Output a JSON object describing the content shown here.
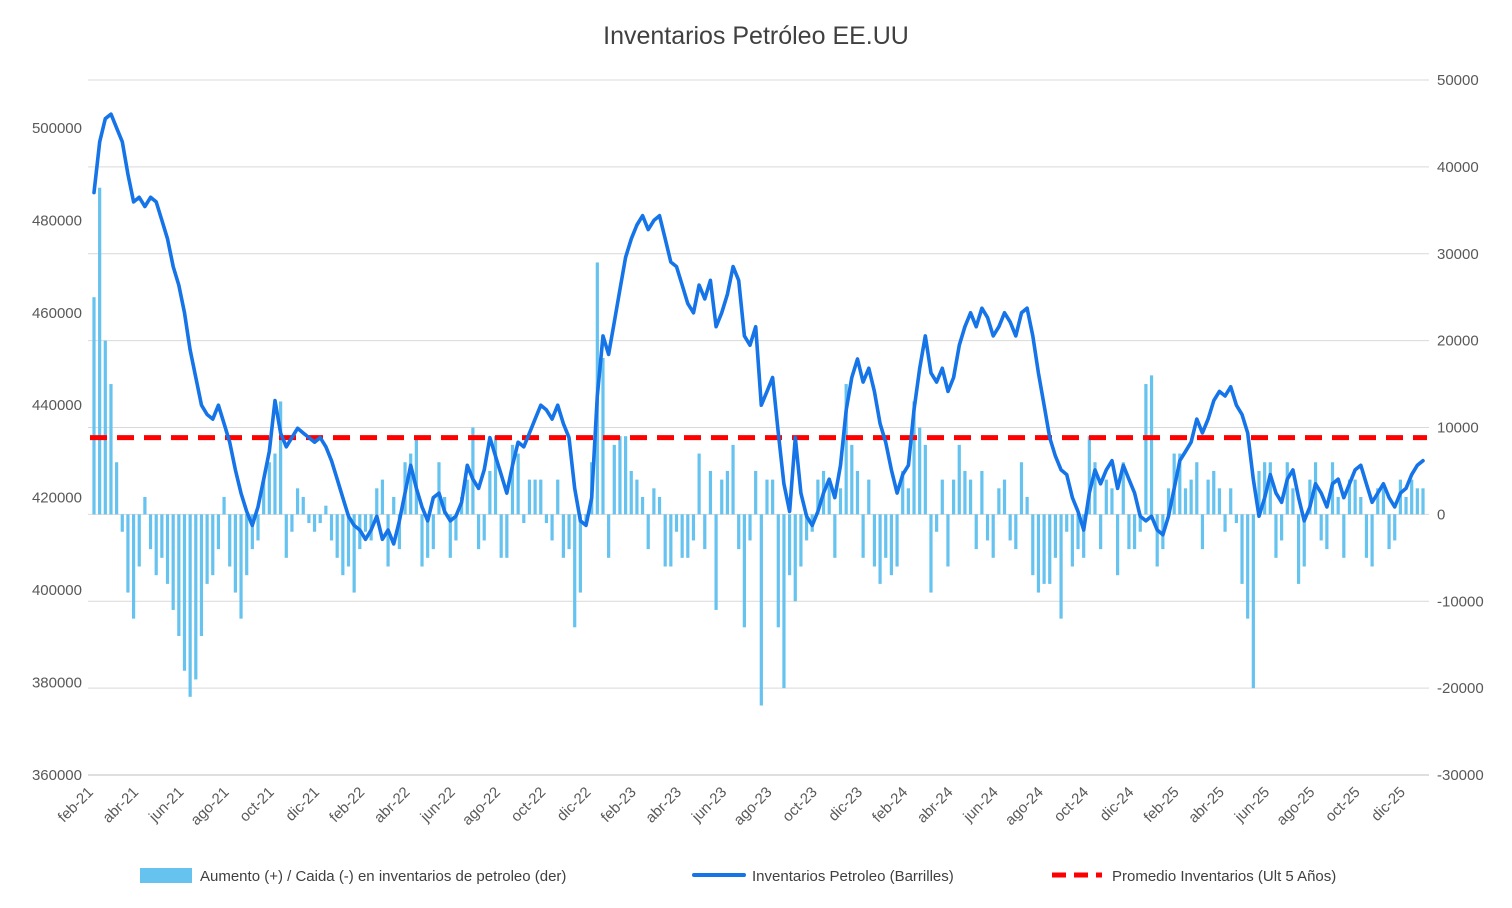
{
  "chart_data": {
    "type": "combo-bar-line",
    "title": "Inventarios Petróleo EE.UU",
    "left_axis": {
      "ticks": [
        360000,
        380000,
        400000,
        420000,
        440000,
        460000,
        480000,
        500000
      ],
      "min": 360000,
      "px_per_20000_matches_line_scale": true
    },
    "right_axis": {
      "ticks": [
        -30000,
        -20000,
        -10000,
        0,
        10000,
        20000,
        30000,
        40000,
        50000
      ],
      "min": -30000,
      "max": 50000
    },
    "x_tick_labels": [
      "feb-21",
      "abr-21",
      "jun-21",
      "ago-21",
      "oct-21",
      "dic-21",
      "feb-22",
      "abr-22",
      "jun-22",
      "ago-22",
      "oct-22",
      "dic-22",
      "feb-23",
      "abr-23",
      "jun-23",
      "ago-23",
      "oct-23",
      "dic-23",
      "feb-24",
      "abr-24",
      "jun-24",
      "ago-24",
      "oct-24",
      "dic-24",
      "feb-25",
      "abr-25",
      "jun-25",
      "ago-25",
      "oct-25",
      "dic-25"
    ],
    "x_tick_every": 8,
    "average_line_value": 433000,
    "colors": {
      "bar": "#66C2EE",
      "line": "#1574E8",
      "average": "#FF0000",
      "grid": "#D9D9D9",
      "axis_text": "#595959",
      "title_text": "#404040",
      "legend_text": "#404040",
      "axis_line": "#BFBFBF"
    },
    "series": [
      {
        "name": "Aumento (+) / Caida (-) en inventarios de petroleo (der)",
        "axis": "right",
        "kind": "bar",
        "values": [
          25000,
          37600,
          20000,
          15000,
          6000,
          -2000,
          -9000,
          -12000,
          -6000,
          2000,
          -4000,
          -7000,
          -5000,
          -8000,
          -11000,
          -14000,
          -18000,
          -21000,
          -19000,
          -14000,
          -8000,
          -7000,
          -4000,
          2000,
          -6000,
          -9000,
          -12000,
          -7000,
          -4000,
          -3000,
          4000,
          6000,
          7000,
          13000,
          -5000,
          -2000,
          3000,
          2000,
          -1000,
          -2000,
          -1000,
          1000,
          -3000,
          -5000,
          -7000,
          -6000,
          -9000,
          -4000,
          -2000,
          -3000,
          3000,
          4000,
          -6000,
          2000,
          -4000,
          6000,
          7000,
          9000,
          -6000,
          -5000,
          -4000,
          6000,
          2000,
          -5000,
          -3000,
          2000,
          4000,
          10000,
          -4000,
          -3000,
          5000,
          9000,
          -5000,
          -5000,
          8000,
          7000,
          -1000,
          4000,
          4000,
          4000,
          -1000,
          -3000,
          4000,
          -5000,
          -4000,
          -13000,
          -9000,
          -1000,
          6000,
          29000,
          18000,
          -5000,
          8000,
          9000,
          9000,
          5000,
          4000,
          2000,
          -4000,
          3000,
          2000,
          -6000,
          -6000,
          -2000,
          -5000,
          -5000,
          -3000,
          7000,
          -4000,
          5000,
          -11000,
          4000,
          5000,
          8000,
          -4000,
          -13000,
          -3000,
          5000,
          -22000,
          4000,
          4000,
          -13000,
          -20000,
          -7000,
          -10000,
          -6000,
          -3000,
          -2000,
          4000,
          5000,
          4000,
          -5000,
          3000,
          15000,
          8000,
          5000,
          -5000,
          4000,
          -6000,
          -8000,
          -5000,
          -7000,
          -6000,
          5000,
          3000,
          13000,
          10000,
          8000,
          -9000,
          -2000,
          4000,
          -6000,
          4000,
          8000,
          5000,
          4000,
          -4000,
          5000,
          -3000,
          -5000,
          3000,
          4000,
          -3000,
          -4000,
          6000,
          2000,
          -7000,
          -9000,
          -8000,
          -8000,
          -5000,
          -12000,
          -2000,
          -6000,
          -4000,
          -5000,
          9000,
          6000,
          -4000,
          4000,
          3000,
          -7000,
          6000,
          -4000,
          -4000,
          -2000,
          15000,
          16000,
          -6000,
          -4000,
          3000,
          7000,
          7000,
          3000,
          4000,
          6000,
          -4000,
          4000,
          5000,
          3000,
          -2000,
          3000,
          -1000,
          -8000,
          -12000,
          -20000,
          5000,
          6000,
          6000,
          -5000,
          -3000,
          6000,
          3000,
          -8000,
          -6000,
          4000,
          6000,
          -3000,
          -4000,
          6000,
          2000,
          -5000,
          4000,
          4000,
          2000,
          -5000,
          -6000,
          3000,
          3000,
          -4000,
          -3000,
          4000,
          2000,
          4000,
          3000,
          3000
        ]
      },
      {
        "name": "Inventarios Petroleo (Barrilles)",
        "axis": "left",
        "kind": "line",
        "values": [
          486000,
          497000,
          502000,
          503000,
          500000,
          497000,
          490000,
          484000,
          485000,
          483000,
          485000,
          484000,
          480000,
          476000,
          470000,
          466000,
          460000,
          452000,
          446000,
          440000,
          438000,
          437000,
          440000,
          436000,
          432000,
          426000,
          421000,
          417000,
          414000,
          418000,
          424000,
          430000,
          441000,
          434000,
          431000,
          433000,
          435000,
          434000,
          433000,
          432000,
          433000,
          431000,
          428000,
          424000,
          420000,
          416000,
          414000,
          413000,
          411000,
          413000,
          416000,
          411000,
          413000,
          410000,
          415000,
          421000,
          427000,
          422000,
          418000,
          415000,
          420000,
          421000,
          417000,
          415000,
          416000,
          419000,
          427000,
          424000,
          422000,
          426000,
          433000,
          429000,
          425000,
          421000,
          427000,
          432000,
          431000,
          434000,
          437000,
          440000,
          439000,
          437000,
          440000,
          436000,
          433000,
          422000,
          415000,
          414000,
          420000,
          442000,
          455000,
          451000,
          458000,
          465000,
          472000,
          476000,
          479000,
          481000,
          478000,
          480000,
          481000,
          476000,
          471000,
          470000,
          466000,
          462000,
          460000,
          466000,
          463000,
          467000,
          457000,
          460000,
          464000,
          470000,
          467000,
          455000,
          453000,
          457000,
          440000,
          443000,
          446000,
          434000,
          423000,
          417000,
          433000,
          421000,
          416000,
          414000,
          417000,
          421000,
          424000,
          420000,
          427000,
          439000,
          446000,
          450000,
          445000,
          448000,
          443000,
          436000,
          432000,
          426000,
          421000,
          425000,
          427000,
          439000,
          448000,
          455000,
          447000,
          445000,
          448000,
          443000,
          446000,
          453000,
          457000,
          460000,
          457000,
          461000,
          459000,
          455000,
          457000,
          460000,
          458000,
          455000,
          460000,
          461000,
          455000,
          447000,
          440000,
          433000,
          429000,
          426000,
          425000,
          420000,
          417000,
          413000,
          421000,
          426000,
          423000,
          426000,
          428000,
          422000,
          427000,
          424000,
          421000,
          416000,
          415000,
          416000,
          413000,
          412000,
          416000,
          422000,
          428000,
          430000,
          432000,
          437000,
          434000,
          437000,
          441000,
          443000,
          442000,
          444000,
          440000,
          438000,
          434000,
          424000,
          416000,
          420000,
          425000,
          421000,
          419000,
          424000,
          426000,
          420000,
          415000,
          418000,
          423000,
          421000,
          418000,
          423000,
          424000,
          420000,
          423000,
          426000,
          427000,
          423000,
          419000,
          421000,
          423000,
          420000,
          418000,
          421000,
          422000,
          425000,
          427000,
          428000
        ]
      },
      {
        "name": "Promedio Inventarios (Ult 5 Años)",
        "axis": "left",
        "kind": "dashed-average",
        "value": 433000
      }
    ],
    "legend": {
      "items": [
        {
          "swatch": "bar",
          "label": "Aumento (+) / Caida (-) en inventarios de petroleo (der)"
        },
        {
          "swatch": "line",
          "label": "Inventarios Petroleo (Barrilles)"
        },
        {
          "swatch": "dash",
          "label": "Promedio Inventarios (Ult 5 Años)"
        }
      ]
    }
  }
}
